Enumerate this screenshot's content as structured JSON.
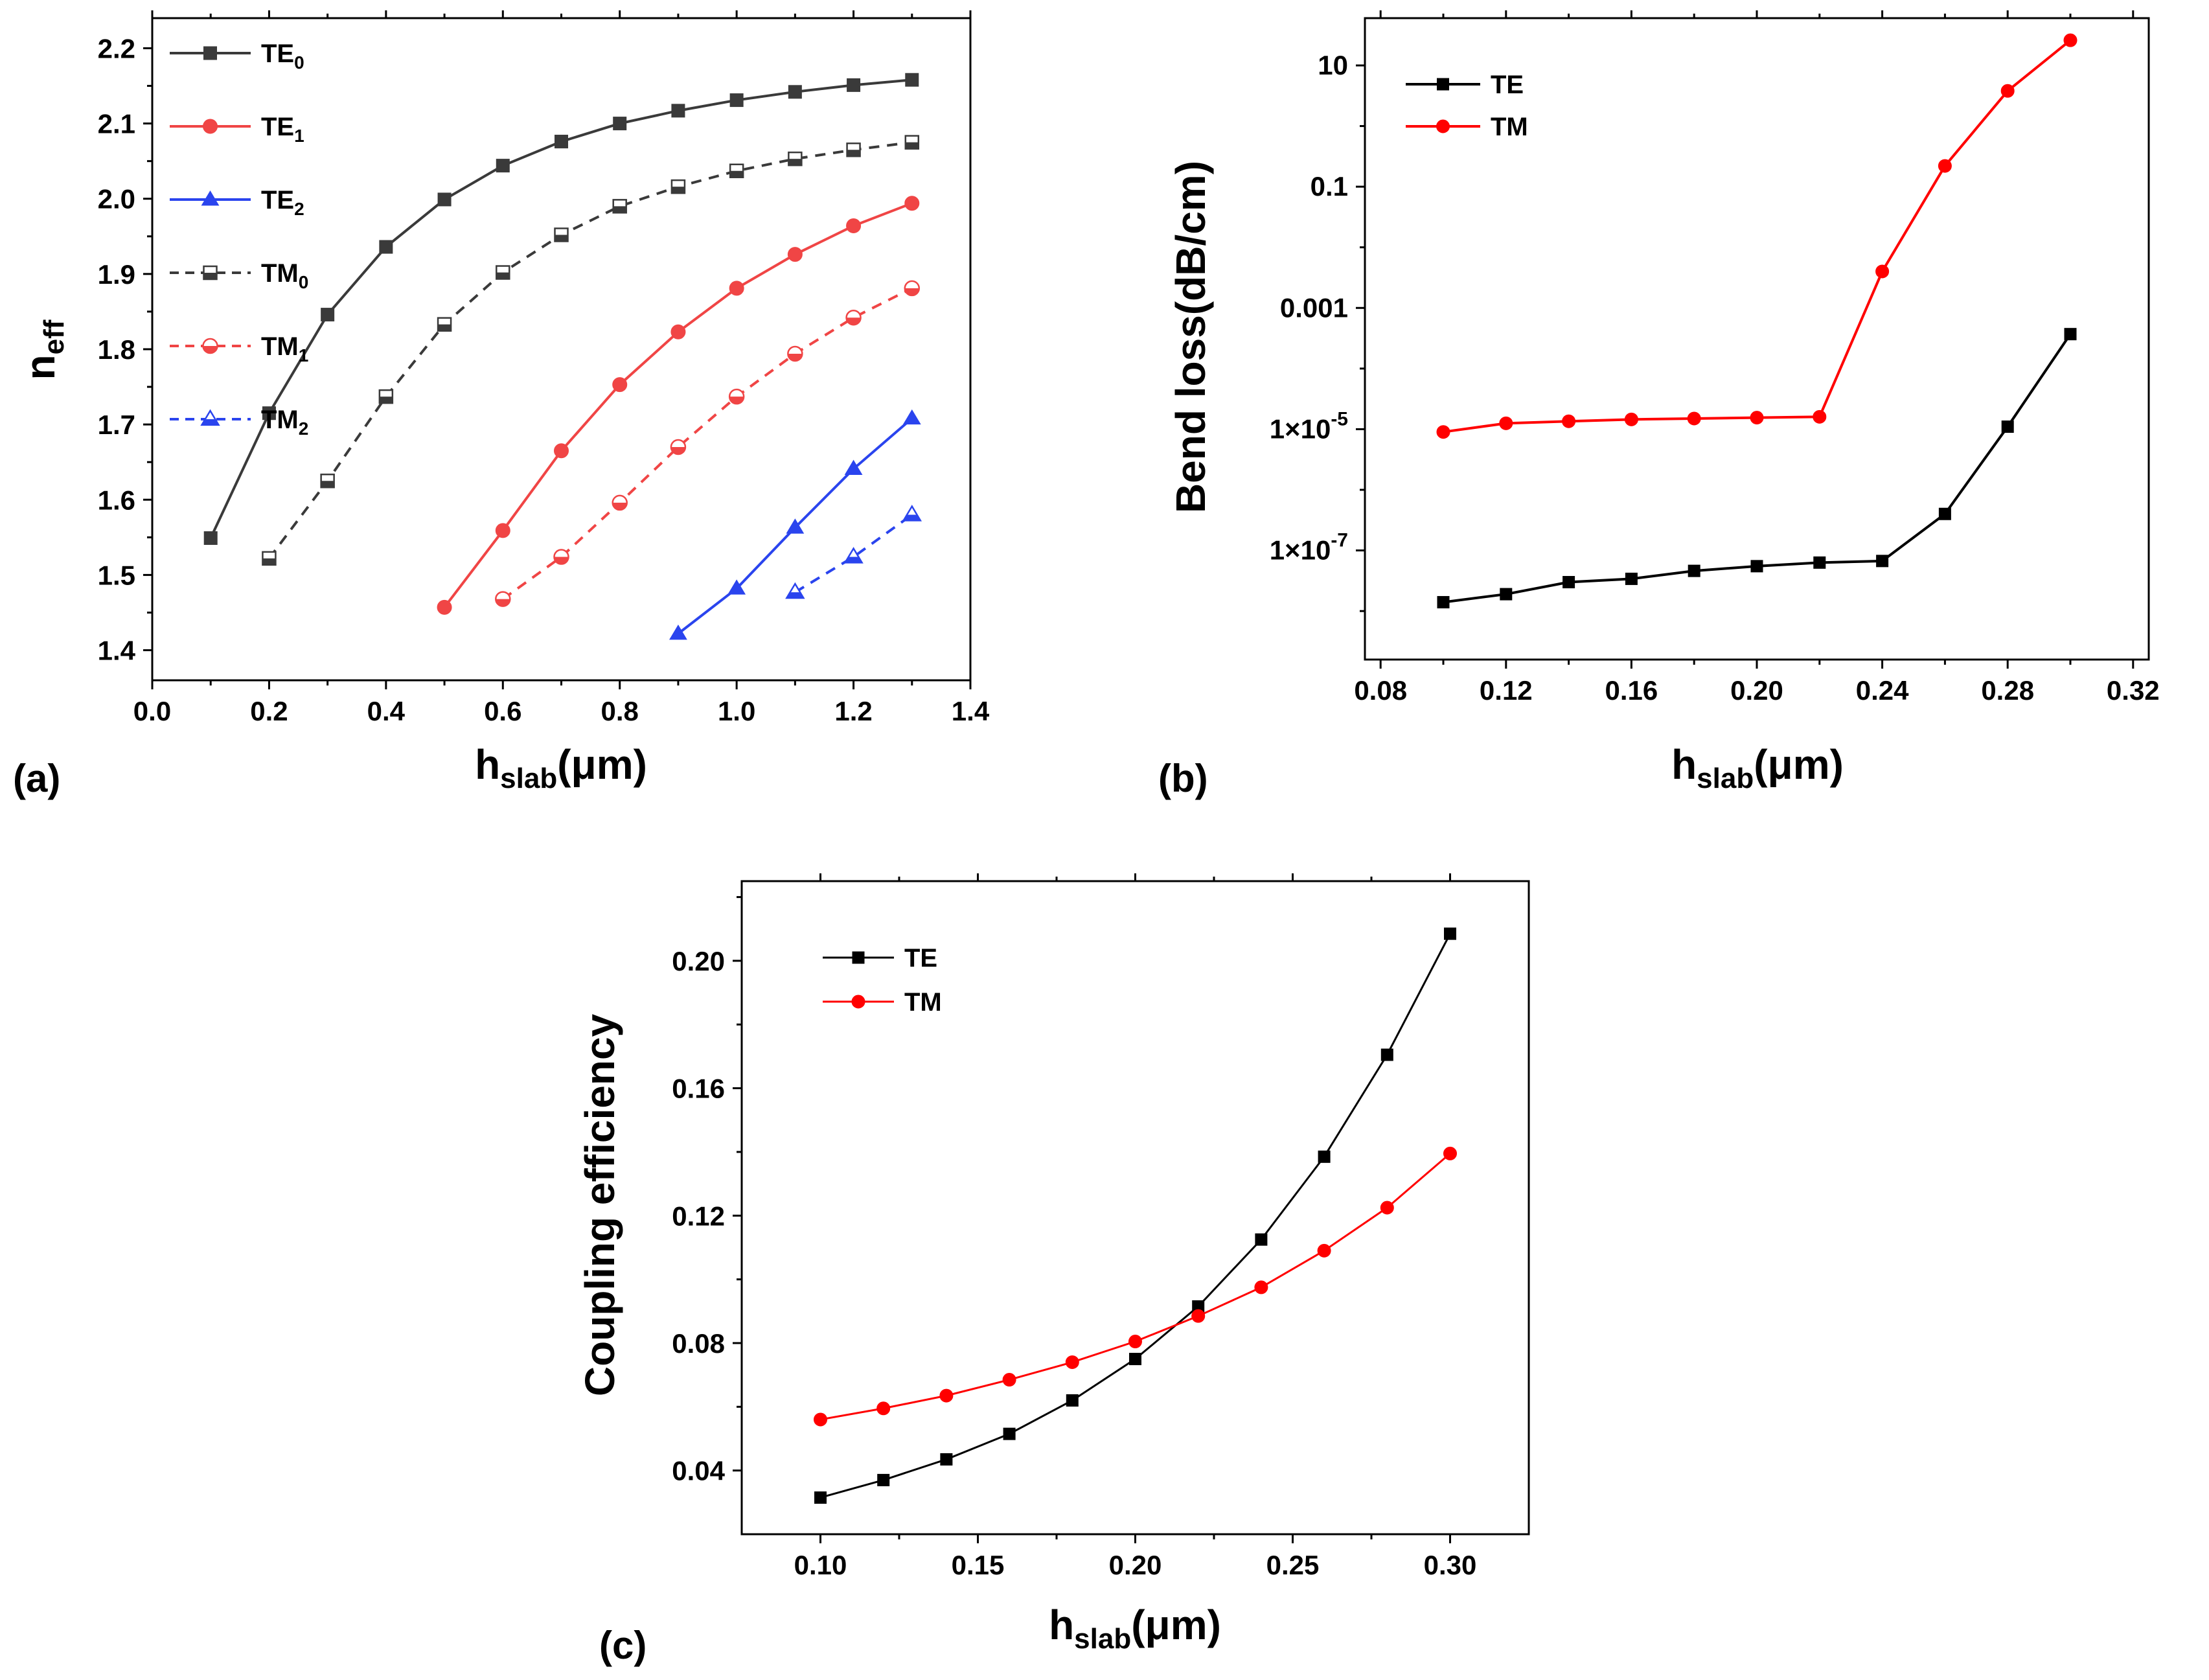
{
  "figure": {
    "panel_labels": [
      "(a)",
      "(b)",
      "(c)"
    ]
  },
  "chart_data": [
    {
      "panel": "(a)",
      "type": "line",
      "title": "",
      "xlabel": "h",
      "xlabel_sub": "slab",
      "xlabel_unit": "(μm)",
      "ylabel": "n",
      "ylabel_sub": "eff",
      "xlim": [
        0.0,
        1.4
      ],
      "ylim": [
        1.36,
        2.24
      ],
      "xticks": [
        "0.0",
        "0.2",
        "0.4",
        "0.6",
        "0.8",
        "1.0",
        "1.2",
        "1.4"
      ],
      "yticks": [
        "1.4",
        "1.5",
        "1.6",
        "1.7",
        "1.8",
        "1.9",
        "2.0",
        "2.1",
        "2.2"
      ],
      "legend_position": "top-left",
      "series": [
        {
          "name": "TE",
          "sub": "0",
          "color": "#3a3a3a",
          "dashed": false,
          "marker": "square",
          "fill": "full",
          "x": [
            0.1,
            0.2,
            0.3,
            0.4,
            0.5,
            0.6,
            0.7,
            0.8,
            0.9,
            1.0,
            1.1,
            1.2,
            1.3
          ],
          "y": [
            1.549,
            1.715,
            1.846,
            1.936,
            1.999,
            2.044,
            2.076,
            2.1,
            2.117,
            2.131,
            2.142,
            2.151,
            2.158
          ]
        },
        {
          "name": "TE",
          "sub": "1",
          "color": "#f04545",
          "dashed": false,
          "marker": "circle",
          "fill": "full",
          "x": [
            0.5,
            0.6,
            0.7,
            0.8,
            0.9,
            1.0,
            1.1,
            1.2,
            1.3
          ],
          "y": [
            1.457,
            1.559,
            1.665,
            1.753,
            1.823,
            1.881,
            1.926,
            1.964,
            1.994
          ]
        },
        {
          "name": "TE",
          "sub": "2",
          "color": "#2a44ee",
          "dashed": false,
          "marker": "triangle",
          "fill": "full",
          "x": [
            0.9,
            1.0,
            1.1,
            1.2,
            1.3
          ],
          "y": [
            1.422,
            1.482,
            1.563,
            1.641,
            1.708
          ]
        },
        {
          "name": "TM",
          "sub": "0",
          "color": "#3a3a3a",
          "dashed": true,
          "marker": "square",
          "fill": "half",
          "x": [
            0.2,
            0.3,
            0.4,
            0.5,
            0.6,
            0.7,
            0.8,
            0.9,
            1.0,
            1.1,
            1.2,
            1.3
          ],
          "y": [
            1.522,
            1.625,
            1.737,
            1.833,
            1.902,
            1.952,
            1.99,
            2.016,
            2.037,
            2.053,
            2.065,
            2.075
          ]
        },
        {
          "name": "TM",
          "sub": "1",
          "color": "#f04545",
          "dashed": true,
          "marker": "circle",
          "fill": "half",
          "x": [
            0.6,
            0.7,
            0.8,
            0.9,
            1.0,
            1.1,
            1.2,
            1.3
          ],
          "y": [
            1.468,
            1.524,
            1.596,
            1.67,
            1.737,
            1.794,
            1.842,
            1.881
          ]
        },
        {
          "name": "TM",
          "sub": "2",
          "color": "#2a44ee",
          "dashed": true,
          "marker": "triangle",
          "fill": "half",
          "x": [
            1.1,
            1.2,
            1.3
          ],
          "y": [
            1.477,
            1.524,
            1.58
          ]
        }
      ]
    },
    {
      "panel": "(b)",
      "type": "line",
      "title": "",
      "xlabel": "h",
      "xlabel_sub": "slab",
      "xlabel_unit": "(μm)",
      "ylabel": "Bend loss(dB/cm)",
      "yscale": "log",
      "xlim": [
        0.075,
        0.325
      ],
      "ylim_log10": [
        -8.8,
        1.78
      ],
      "xticks": [
        "0.08",
        "0.12",
        "0.16",
        "0.20",
        "0.24",
        "0.28",
        "0.32"
      ],
      "yticks": [
        {
          "exp": 1,
          "mantissa": "10",
          "sup": ""
        },
        {
          "exp": -1,
          "mantissa": "0.1",
          "sup": ""
        },
        {
          "exp": -3,
          "mantissa": "0.001",
          "sup": ""
        },
        {
          "exp": -5,
          "mantissa": "1×10",
          "sup": "-5"
        },
        {
          "exp": -7,
          "mantissa": "1×10",
          "sup": "-7"
        }
      ],
      "legend_position": "top-left",
      "series": [
        {
          "name": "TE",
          "color": "#000000",
          "marker": "square",
          "x": [
            0.1,
            0.12,
            0.14,
            0.16,
            0.18,
            0.2,
            0.22,
            0.24,
            0.26,
            0.28,
            0.3
          ],
          "y": [
            1.4e-08,
            1.9e-08,
            3e-08,
            3.4e-08,
            4.6e-08,
            5.5e-08,
            6.3e-08,
            6.7e-08,
            4e-07,
            1.1e-05,
            0.00037
          ]
        },
        {
          "name": "TM",
          "color": "#ff0000",
          "marker": "circle",
          "x": [
            0.1,
            0.12,
            0.14,
            0.16,
            0.18,
            0.2,
            0.22,
            0.24,
            0.26,
            0.28,
            0.3
          ],
          "y": [
            9e-06,
            1.25e-05,
            1.35e-05,
            1.45e-05,
            1.5e-05,
            1.55e-05,
            1.6e-05,
            0.004,
            0.22,
            3.8,
            26
          ]
        }
      ]
    },
    {
      "panel": "(c)",
      "type": "line",
      "title": "",
      "xlabel": "h",
      "xlabel_sub": "slab",
      "xlabel_unit": "(μm)",
      "ylabel": "Coupling efficiency",
      "xlim": [
        0.075,
        0.325
      ],
      "ylim": [
        0.02,
        0.225
      ],
      "xticks": [
        "0.10",
        "0.15",
        "0.20",
        "0.25",
        "0.30"
      ],
      "yticks": [
        "0.04",
        "0.08",
        "0.12",
        "0.16",
        "0.20"
      ],
      "legend_position": "top-left",
      "series": [
        {
          "name": "TE",
          "color": "#000000",
          "marker": "square",
          "x": [
            0.1,
            0.12,
            0.14,
            0.16,
            0.18,
            0.2,
            0.22,
            0.24,
            0.26,
            0.28,
            0.3
          ],
          "y": [
            0.0315,
            0.037,
            0.0435,
            0.0515,
            0.062,
            0.075,
            0.0915,
            0.1125,
            0.1385,
            0.1705,
            0.2085
          ]
        },
        {
          "name": "TM",
          "color": "#ff0000",
          "marker": "circle",
          "x": [
            0.1,
            0.12,
            0.14,
            0.16,
            0.18,
            0.2,
            0.22,
            0.24,
            0.26,
            0.28,
            0.3
          ],
          "y": [
            0.056,
            0.0595,
            0.0635,
            0.0685,
            0.074,
            0.0805,
            0.0885,
            0.0975,
            0.109,
            0.1225,
            0.1395
          ]
        }
      ]
    }
  ]
}
